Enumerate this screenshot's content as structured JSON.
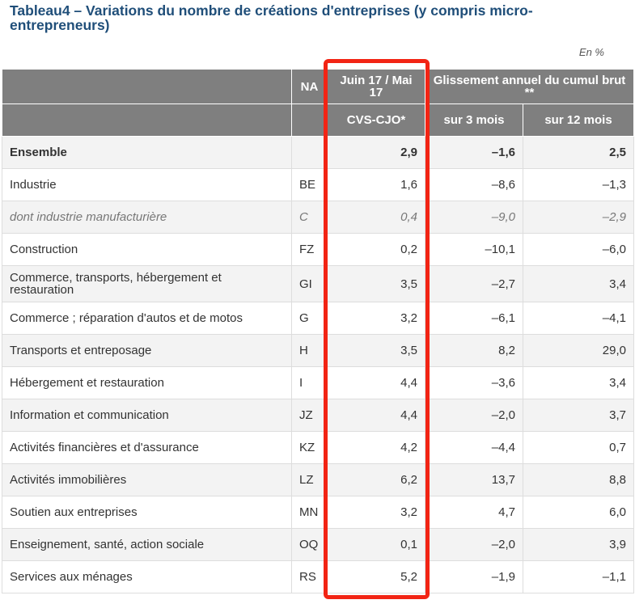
{
  "title": "Tableau4 – Variations du nombre de créations d'entreprises (y compris micro-entrepreneurs)",
  "unit": "En %",
  "header": {
    "na": "NA",
    "juin_mai": "Juin 17 / Mai 17",
    "glissement": "Glissement annuel du cumul brut **",
    "cvs_cjo": "CVS-CJO*",
    "sur3": "sur 3 mois",
    "sur12": "sur 12 mois"
  },
  "rows": [
    {
      "label": "Ensemble",
      "na": "",
      "m": "2,9",
      "s3": "–1,6",
      "s12": "2,5"
    },
    {
      "label": "Industrie",
      "na": "BE",
      "m": "1,6",
      "s3": "–8,6",
      "s12": "–1,3"
    },
    {
      "label": "dont industrie manufacturière",
      "na": "C",
      "m": "0,4",
      "s3": "–9,0",
      "s12": "–2,9"
    },
    {
      "label": "Construction",
      "na": "FZ",
      "m": "0,2",
      "s3": "–10,1",
      "s12": "–6,0"
    },
    {
      "label": "Commerce, transports, hébergement et restauration",
      "na": "GI",
      "m": "3,5",
      "s3": "–2,7",
      "s12": "3,4"
    },
    {
      "label": "Commerce ; réparation d'autos et de motos",
      "na": "G",
      "m": "3,2",
      "s3": "–6,1",
      "s12": "–4,1"
    },
    {
      "label": "Transports et entreposage",
      "na": "H",
      "m": "3,5",
      "s3": "8,2",
      "s12": "29,0"
    },
    {
      "label": "Hébergement et restauration",
      "na": "I",
      "m": "4,4",
      "s3": "–3,6",
      "s12": "3,4"
    },
    {
      "label": "Information et communication",
      "na": "JZ",
      "m": "4,4",
      "s3": "–2,0",
      "s12": "3,7"
    },
    {
      "label": "Activités financières et d'assurance",
      "na": "KZ",
      "m": "4,2",
      "s3": "–4,4",
      "s12": "0,7"
    },
    {
      "label": "Activités immobilières",
      "na": "LZ",
      "m": "6,2",
      "s3": "13,7",
      "s12": "8,8"
    },
    {
      "label": "Soutien aux entreprises",
      "na": "MN",
      "m": "3,2",
      "s3": "4,7",
      "s12": "6,0"
    },
    {
      "label": "Enseignement, santé, action sociale",
      "na": "OQ",
      "m": "0,1",
      "s3": "–2,0",
      "s12": "3,9"
    },
    {
      "label": "Services aux ménages",
      "na": "RS",
      "m": "5,2",
      "s3": "–1,9",
      "s12": "–1,1"
    }
  ],
  "highlight_color": "#f22414"
}
